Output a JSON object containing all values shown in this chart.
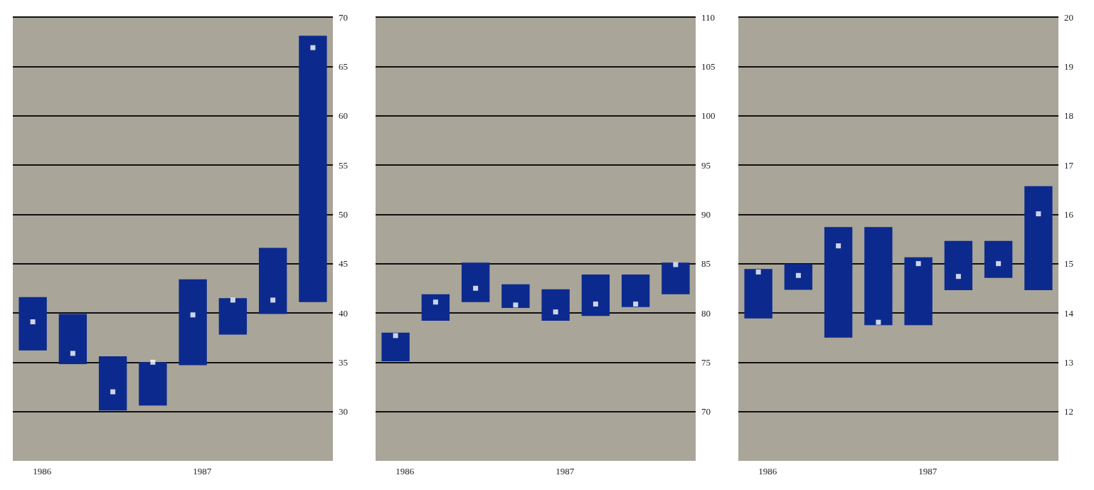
{
  "chart_data": [
    {
      "type": "bar",
      "categories": [
        "1986",
        null,
        null,
        null,
        "1987",
        null,
        null,
        null
      ],
      "series": [
        {
          "color": "#0c2a8e",
          "base": [
            36.2,
            34.8,
            30.1,
            30.6,
            34.7,
            37.8,
            39.9,
            41.1
          ],
          "values": [
            5.4,
            5.1,
            5.5,
            4.4,
            8.7,
            3.7,
            6.7,
            27.0
          ]
        },
        {
          "type": "scatter",
          "color": "#ffffff",
          "values": [
            39.1,
            35.9,
            32.0,
            35.0,
            39.8,
            41.3,
            41.3,
            66.9
          ]
        }
      ],
      "ylim": [
        25,
        70
      ],
      "yticks": [
        30,
        35,
        40,
        45,
        50,
        55,
        60,
        65,
        70
      ],
      "grid": "y",
      "marker": "square"
    },
    {
      "type": "bar",
      "categories": [
        "1986",
        null,
        null,
        null,
        "1987",
        null,
        null,
        null
      ],
      "series": [
        {
          "color": "#0c2a8e",
          "base": [
            75.1,
            79.2,
            81.1,
            80.5,
            79.2,
            79.7,
            80.6,
            81.9
          ],
          "values": [
            2.9,
            2.7,
            4.0,
            2.4,
            3.2,
            4.2,
            3.3,
            3.2
          ]
        },
        {
          "type": "scatter",
          "color": "#ffffff",
          "values": [
            77.7,
            81.1,
            82.5,
            80.8,
            80.1,
            80.9,
            80.9,
            84.9
          ]
        }
      ],
      "ylim": [
        65,
        110
      ],
      "yticks": [
        70,
        75,
        80,
        85,
        90,
        95,
        100,
        105,
        110
      ],
      "grid": "y",
      "marker": "square"
    },
    {
      "type": "bar",
      "categories": [
        "1986",
        null,
        null,
        null,
        "1987",
        null,
        null,
        null
      ],
      "series": [
        {
          "color": "#0c2a8e",
          "base": [
            13.89,
            14.47,
            13.5,
            13.75,
            13.75,
            14.46,
            14.71,
            14.46
          ],
          "values": [
            1.0,
            0.52,
            2.24,
            1.99,
            1.38,
            1.0,
            0.75,
            2.11
          ]
        },
        {
          "type": "scatter",
          "color": "#ffffff",
          "values": [
            14.83,
            14.76,
            15.36,
            13.81,
            15.0,
            14.74,
            15.0,
            16.01
          ]
        }
      ],
      "ylim": [
        11,
        20
      ],
      "yticks": [
        12,
        13,
        14,
        15,
        16,
        17,
        18,
        19,
        20
      ],
      "grid": "y",
      "marker": "square"
    }
  ]
}
